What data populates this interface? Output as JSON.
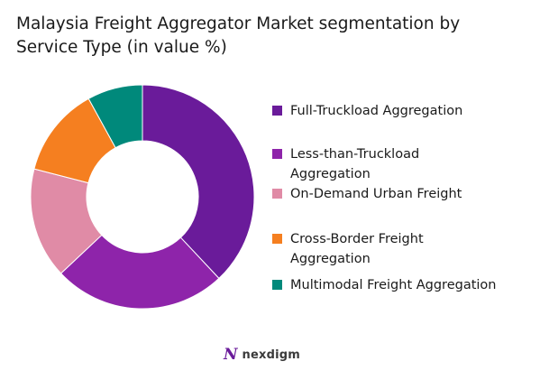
{
  "title": "Malaysia Freight Aggregator Market segmentation by Service Type (in value %)",
  "chart_data": {
    "type": "pie",
    "donut": true,
    "categories": [
      "Full-Truckload Aggregation",
      "Less-than-Truckload Aggregation",
      "On-Demand Urban Freight",
      "Cross-Border Freight Aggregation",
      "Multimodal Freight Aggregation"
    ],
    "values": [
      38,
      25,
      16,
      13,
      8
    ],
    "colors": [
      "#6a1b9a",
      "#8e24aa",
      "#e08ba6",
      "#f57f20",
      "#00897b"
    ],
    "legend_position": "right"
  },
  "legend": [
    {
      "label": "Full-Truckload Aggregation",
      "color": "#6a1b9a"
    },
    {
      "label": "Less-than-Truckload Aggregation",
      "color": "#8e24aa"
    },
    {
      "label": "On-Demand Urban Freight",
      "color": "#e08ba6"
    },
    {
      "label": "Cross-Border Freight Aggregation",
      "color": "#f57f20"
    },
    {
      "label": "Multimodal Freight Aggregation",
      "color": "#00897b"
    }
  ],
  "brand": {
    "mark": "N",
    "name": "nexdigm"
  }
}
